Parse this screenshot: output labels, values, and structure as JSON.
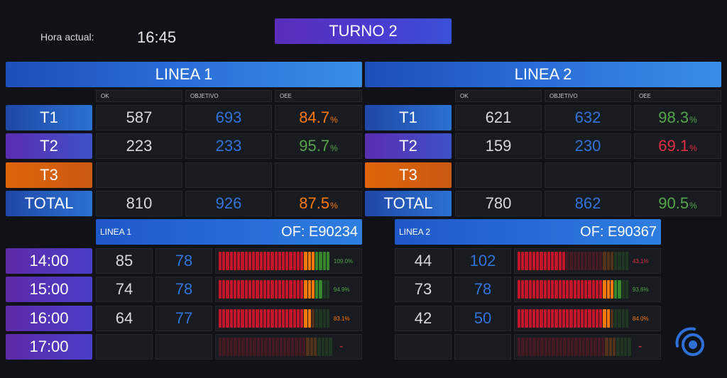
{
  "header": {
    "hora_label": "Hora actual:",
    "hora_value": "16:45",
    "turno": "TURNO 2"
  },
  "columns": {
    "ok": "OK",
    "objetivo": "OBJETIVO",
    "oee": "OEE"
  },
  "linea1": {
    "title": "LINEA 1",
    "rows": [
      {
        "label": "T1",
        "ok": "587",
        "objetivo": "693",
        "oee": "84.7",
        "oee_unit": "%",
        "oee_color": "#ff780a"
      },
      {
        "label": "T2",
        "ok": "223",
        "objetivo": "233",
        "oee": "95.7",
        "oee_unit": "%",
        "oee_color": "#56a64b"
      },
      {
        "label": "T3",
        "ok": "",
        "objetivo": "",
        "oee": "",
        "oee_unit": "",
        "oee_color": "#d8d9da"
      },
      {
        "label": "TOTAL",
        "ok": "810",
        "objetivo": "926",
        "oee": "87.5",
        "oee_unit": "%",
        "oee_color": "#ff780a"
      }
    ],
    "of_label": "LINEA 1",
    "of_code": "OF: E90234",
    "hours": [
      {
        "hour": "14:00",
        "ok": "85",
        "objetivo": "78",
        "pct": "109.0%",
        "pct_color": "#56a64b",
        "level": 1.0
      },
      {
        "hour": "15:00",
        "ok": "74",
        "objetivo": "78",
        "pct": "94.9%",
        "pct_color": "#56a64b",
        "level": 0.949
      },
      {
        "hour": "16:00",
        "ok": "64",
        "objetivo": "77",
        "pct": "83.1%",
        "pct_color": "#ff780a",
        "level": 0.831
      },
      {
        "hour": "17:00",
        "ok": "",
        "objetivo": "",
        "pct": "-",
        "pct_color": "#e02f44",
        "level": 0
      }
    ]
  },
  "linea2": {
    "title": "LINEA 2",
    "rows": [
      {
        "label": "T1",
        "ok": "621",
        "objetivo": "632",
        "oee": "98.3",
        "oee_unit": "%",
        "oee_color": "#56a64b"
      },
      {
        "label": "T2",
        "ok": "159",
        "objetivo": "230",
        "oee": "69.1",
        "oee_unit": "%",
        "oee_color": "#e02f44"
      },
      {
        "label": "T3",
        "ok": "",
        "objetivo": "",
        "oee": "",
        "oee_unit": "",
        "oee_color": "#d8d9da"
      },
      {
        "label": "TOTAL",
        "ok": "780",
        "objetivo": "862",
        "oee": "90.5",
        "oee_unit": "%",
        "oee_color": "#56a64b"
      }
    ],
    "of_label": "LINEA 2",
    "of_code": "OF: E90367",
    "hours": [
      {
        "hour": "",
        "ok": "44",
        "objetivo": "102",
        "pct": "43.1%",
        "pct_color": "#e02f44",
        "level": 0.431
      },
      {
        "hour": "",
        "ok": "73",
        "objetivo": "78",
        "pct": "93.6%",
        "pct_color": "#56a64b",
        "level": 0.936
      },
      {
        "hour": "",
        "ok": "42",
        "objetivo": "50",
        "pct": "84.0%",
        "pct_color": "#ff780a",
        "level": 0.84
      },
      {
        "hour": "",
        "ok": "",
        "objetivo": "",
        "pct": "-",
        "pct_color": "#e02f44",
        "level": 0
      }
    ]
  },
  "colors": {
    "accent_blue": "#3274d9",
    "green": "#56a64b",
    "orange": "#ff780a",
    "red": "#e02f44"
  },
  "logo_icon": "circular-target-logo-icon"
}
